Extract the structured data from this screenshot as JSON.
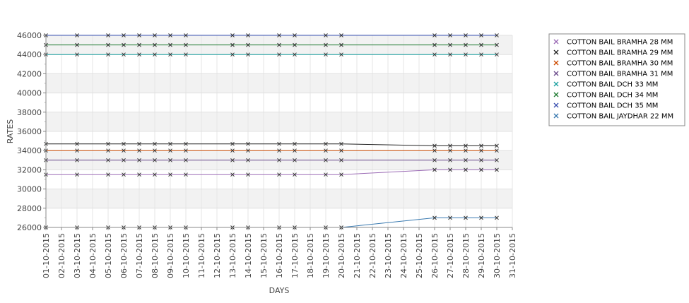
{
  "chart_data": {
    "type": "line",
    "title": "",
    "xlabel": "DAYS",
    "ylabel": "RATES",
    "x_ticks": [
      "01-10-2015",
      "02-10-2015",
      "03-10-2015",
      "04-10-2015",
      "05-10-2015",
      "06-10-2015",
      "07-10-2015",
      "08-10-2015",
      "09-10-2015",
      "10-10-2015",
      "11-10-2015",
      "12-10-2015",
      "13-10-2015",
      "14-10-2015",
      "15-10-2015",
      "16-10-2015",
      "17-10-2015",
      "18-10-2015",
      "19-10-2015",
      "20-10-2015",
      "21-10-2015",
      "22-10-2015",
      "23-10-2015",
      "24-10-2015",
      "25-10-2015",
      "26-10-2015",
      "27-10-2015",
      "28-10-2015",
      "29-10-2015",
      "30-10-2015",
      "31-10-2015"
    ],
    "y_ticks": [
      26000,
      28000,
      30000,
      32000,
      34000,
      36000,
      38000,
      40000,
      42000,
      44000,
      46000
    ],
    "ylim": [
      26000,
      46000
    ],
    "grid": true,
    "legend_position": "right",
    "x": [
      "01-10-2015",
      "03-10-2015",
      "05-10-2015",
      "06-10-2015",
      "07-10-2015",
      "08-10-2015",
      "09-10-2015",
      "10-10-2015",
      "13-10-2015",
      "14-10-2015",
      "16-10-2015",
      "17-10-2015",
      "19-10-2015",
      "20-10-2015",
      "26-10-2015",
      "27-10-2015",
      "28-10-2015",
      "29-10-2015",
      "30-10-2015"
    ],
    "series": [
      {
        "name": "COTTON BAIL BRAMHA 28 MM",
        "color": "#9b6bb5",
        "values": [
          31500,
          31500,
          31500,
          31500,
          31500,
          31500,
          31500,
          31500,
          31500,
          31500,
          31500,
          31500,
          31500,
          31500,
          32000,
          32000,
          32000,
          32000,
          32000
        ]
      },
      {
        "name": "COTTON BAIL BRAMHA 29 MM",
        "color": "#222222",
        "values": [
          34700,
          34700,
          34700,
          34700,
          34700,
          34700,
          34700,
          34700,
          34700,
          34700,
          34700,
          34700,
          34700,
          34700,
          34500,
          34500,
          34500,
          34500,
          34500
        ]
      },
      {
        "name": "COTTON BAIL BRAMHA 30 MM",
        "color": "#cc4a00",
        "values": [
          34000,
          34000,
          34000,
          34000,
          34000,
          34000,
          34000,
          34000,
          34000,
          34000,
          34000,
          34000,
          34000,
          34000,
          34000,
          34000,
          34000,
          34000,
          34000
        ]
      },
      {
        "name": "COTTON BAIL BRAMHA 31 MM",
        "color": "#6a4a8a",
        "values": [
          33000,
          33000,
          33000,
          33000,
          33000,
          33000,
          33000,
          33000,
          33000,
          33000,
          33000,
          33000,
          33000,
          33000,
          33000,
          33000,
          33000,
          33000,
          33000
        ]
      },
      {
        "name": "COTTON BAIL DCH 33 MM",
        "color": "#1aa0a0",
        "values": [
          44000,
          44000,
          44000,
          44000,
          44000,
          44000,
          44000,
          44000,
          44000,
          44000,
          44000,
          44000,
          44000,
          44000,
          44000,
          44000,
          44000,
          44000,
          44000
        ]
      },
      {
        "name": "COTTON BAIL DCH 34 MM",
        "color": "#1e7a30",
        "values": [
          45000,
          45000,
          45000,
          45000,
          45000,
          45000,
          45000,
          45000,
          45000,
          45000,
          45000,
          45000,
          45000,
          45000,
          45000,
          45000,
          45000,
          45000,
          45000
        ]
      },
      {
        "name": "COTTON BAIL DCH 35 MM",
        "color": "#3a50b0",
        "values": [
          46000,
          46000,
          46000,
          46000,
          46000,
          46000,
          46000,
          46000,
          46000,
          46000,
          46000,
          46000,
          46000,
          46000,
          46000,
          46000,
          46000,
          46000,
          46000
        ]
      },
      {
        "name": "COTTON BAIL JAYDHAR 22 MM",
        "color": "#3a7ab0",
        "values": [
          26000,
          26000,
          26000,
          26000,
          26000,
          26000,
          26000,
          26000,
          26000,
          26000,
          26000,
          26000,
          26000,
          26000,
          27000,
          27000,
          27000,
          27000,
          27000
        ]
      }
    ]
  }
}
